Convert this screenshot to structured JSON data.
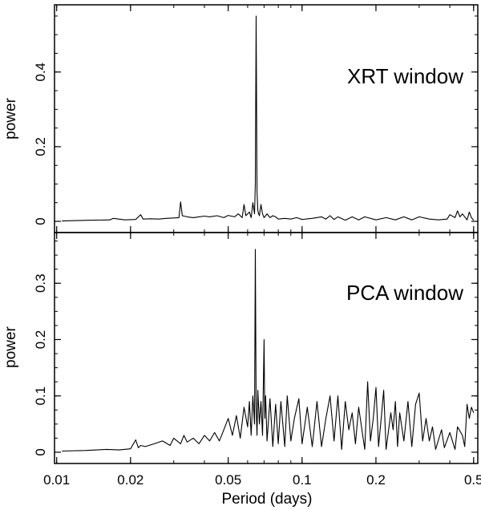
{
  "chart_data": {
    "type": "line",
    "x_scale": "log",
    "xlabel": "Period (days)",
    "xlim": [
      0.0098,
      0.52
    ],
    "x_ticks": [
      {
        "value": 0.01,
        "label": "0.01"
      },
      {
        "value": 0.02,
        "label": "0.02"
      },
      {
        "value": 0.05,
        "label": "0.05"
      },
      {
        "value": 0.1,
        "label": "0.1"
      },
      {
        "value": 0.2,
        "label": "0.2"
      },
      {
        "value": 0.5,
        "label": "0.5"
      }
    ],
    "panels": [
      {
        "label": "XRT window",
        "ylabel": "power",
        "ylim": [
          -0.03,
          0.58
        ],
        "y_ticks": [
          {
            "value": 0,
            "label": "0"
          },
          {
            "value": 0.2,
            "label": "0.2"
          },
          {
            "value": 0.4,
            "label": "0.4"
          }
        ],
        "series": {
          "x": [
            0.0105,
            0.012,
            0.014,
            0.0165,
            0.017,
            0.019,
            0.021,
            0.022,
            0.0225,
            0.024,
            0.026,
            0.028,
            0.03,
            0.0315,
            0.032,
            0.0325,
            0.034,
            0.036,
            0.038,
            0.04,
            0.042,
            0.045,
            0.048,
            0.05,
            0.053,
            0.055,
            0.057,
            0.058,
            0.059,
            0.061,
            0.062,
            0.063,
            0.064,
            0.0645,
            0.065,
            0.0655,
            0.066,
            0.0665,
            0.067,
            0.068,
            0.069,
            0.07,
            0.071,
            0.072,
            0.074,
            0.076,
            0.078,
            0.08,
            0.085,
            0.09,
            0.095,
            0.1,
            0.11,
            0.12,
            0.125,
            0.13,
            0.135,
            0.14,
            0.15,
            0.16,
            0.17,
            0.18,
            0.2,
            0.22,
            0.24,
            0.26,
            0.28,
            0.3,
            0.33,
            0.36,
            0.39,
            0.4,
            0.42,
            0.43,
            0.44,
            0.45,
            0.47,
            0.48,
            0.49,
            0.5
          ],
          "y": [
            0.001,
            0.002,
            0.003,
            0.004,
            0.008,
            0.004,
            0.005,
            0.018,
            0.006,
            0.007,
            0.006,
            0.008,
            0.009,
            0.01,
            0.052,
            0.015,
            0.012,
            0.01,
            0.012,
            0.014,
            0.012,
            0.015,
            0.01,
            0.016,
            0.012,
            0.02,
            0.01,
            0.045,
            0.015,
            0.025,
            0.01,
            0.05,
            0.02,
            0.1,
            0.55,
            0.08,
            0.03,
            0.02,
            0.015,
            0.045,
            0.02,
            0.01,
            0.015,
            0.02,
            0.01,
            0.015,
            0.012,
            0.006,
            0.008,
            0.006,
            0.01,
            0.005,
            0.008,
            0.012,
            0.006,
            0.015,
            0.005,
            0.012,
            0.003,
            0.012,
            0.004,
            0.012,
            0.004,
            0.01,
            0.004,
            0.012,
            0.004,
            0.012,
            0.006,
            0.004,
            0.006,
            0.018,
            0.01,
            0.028,
            0.012,
            0.02,
            0.004,
            0.025,
            0.01,
            0.003
          ]
        }
      },
      {
        "label": "PCA window",
        "ylabel": "power",
        "ylim": [
          -0.02,
          0.39
        ],
        "y_ticks": [
          {
            "value": 0,
            "label": "0"
          },
          {
            "value": 0.1,
            "label": "0.1"
          },
          {
            "value": 0.2,
            "label": "0.2"
          },
          {
            "value": 0.3,
            "label": "0.3"
          }
        ],
        "series": {
          "x": [
            0.0105,
            0.013,
            0.016,
            0.018,
            0.02,
            0.021,
            0.0215,
            0.022,
            0.023,
            0.025,
            0.027,
            0.029,
            0.03,
            0.032,
            0.033,
            0.034,
            0.036,
            0.038,
            0.04,
            0.042,
            0.044,
            0.046,
            0.048,
            0.05,
            0.052,
            0.054,
            0.056,
            0.058,
            0.06,
            0.061,
            0.062,
            0.063,
            0.064,
            0.0645,
            0.065,
            0.0655,
            0.066,
            0.067,
            0.068,
            0.069,
            0.07,
            0.0705,
            0.071,
            0.072,
            0.074,
            0.076,
            0.078,
            0.08,
            0.082,
            0.085,
            0.087,
            0.09,
            0.093,
            0.097,
            0.1,
            0.105,
            0.11,
            0.115,
            0.12,
            0.125,
            0.13,
            0.135,
            0.14,
            0.145,
            0.15,
            0.155,
            0.16,
            0.165,
            0.17,
            0.18,
            0.185,
            0.19,
            0.195,
            0.2,
            0.205,
            0.21,
            0.215,
            0.22,
            0.23,
            0.235,
            0.24,
            0.245,
            0.25,
            0.26,
            0.27,
            0.28,
            0.29,
            0.3,
            0.31,
            0.32,
            0.33,
            0.34,
            0.35,
            0.37,
            0.38,
            0.4,
            0.42,
            0.43,
            0.45,
            0.46,
            0.47,
            0.48,
            0.49,
            0.5
          ],
          "y": [
            0.002,
            0.003,
            0.005,
            0.004,
            0.006,
            0.022,
            0.008,
            0.012,
            0.01,
            0.015,
            0.02,
            0.012,
            0.025,
            0.015,
            0.03,
            0.018,
            0.025,
            0.015,
            0.03,
            0.02,
            0.035,
            0.02,
            0.04,
            0.06,
            0.03,
            0.065,
            0.025,
            0.08,
            0.045,
            0.09,
            0.03,
            0.1,
            0.05,
            0.36,
            0.08,
            0.03,
            0.11,
            0.05,
            0.09,
            0.03,
            0.2,
            0.06,
            0.1,
            0.02,
            0.095,
            0.01,
            0.085,
            0.015,
            0.09,
            0.01,
            0.1,
            0.02,
            0.06,
            0.095,
            0.015,
            0.08,
            0.01,
            0.09,
            0.01,
            0.06,
            0.1,
            0.02,
            0.1,
            0.005,
            0.09,
            0.04,
            0.07,
            0.015,
            0.08,
            0.005,
            0.125,
            0.02,
            0.06,
            0.115,
            0.01,
            0.06,
            0.11,
            0.005,
            0.07,
            0.04,
            0.09,
            0.01,
            0.07,
            0.02,
            0.09,
            0.01,
            0.085,
            0.105,
            0.02,
            0.06,
            0.02,
            0.045,
            0.005,
            0.04,
            0.008,
            0.035,
            0.005,
            0.045,
            0.03,
            0.01,
            0.085,
            0.06,
            0.08,
            0.07
          ]
        }
      }
    ]
  }
}
